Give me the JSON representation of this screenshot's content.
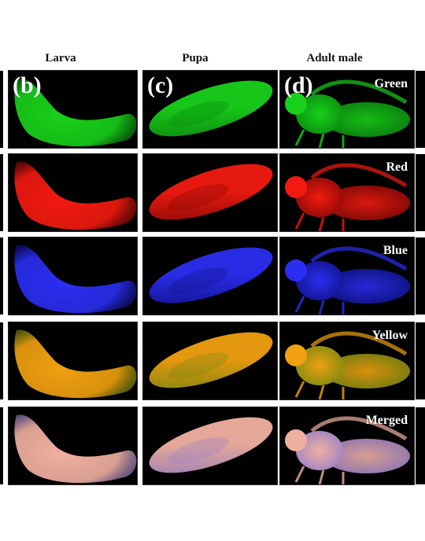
{
  "columns": [
    {
      "header": "Larva",
      "letter": "(b)"
    },
    {
      "header": "Pupa",
      "letter": "(c)"
    },
    {
      "header": "Adult male",
      "letter": "(d)"
    }
  ],
  "channels": [
    {
      "label": "Green",
      "color": "#18d01a",
      "glow": "#0a8a0e"
    },
    {
      "label": "Red",
      "color": "#f21a10",
      "glow": "#8a0a06"
    },
    {
      "label": "Blue",
      "color": "#2a2ef0",
      "glow": "#10138a"
    },
    {
      "label": "Yellow",
      "color": "#f0a010",
      "glow": "#7a8a10"
    },
    {
      "label": "Merged",
      "color": "#f0b0a0",
      "glow": "#9a80c8"
    }
  ]
}
